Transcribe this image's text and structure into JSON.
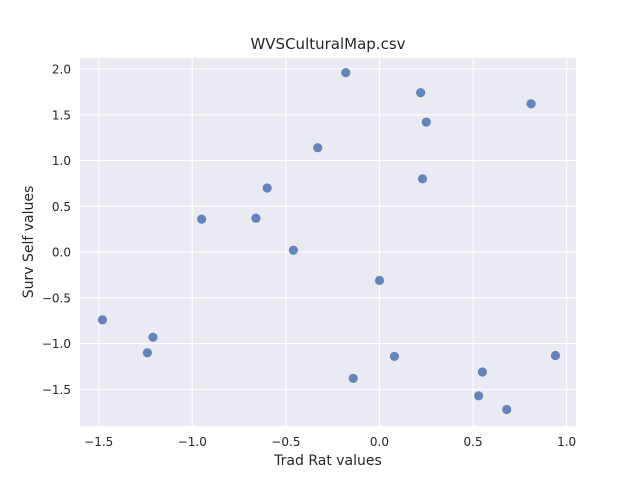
{
  "chart_data": {
    "type": "scatter",
    "title": "WVSCulturalMap.csv",
    "xlabel": "Trad Rat values",
    "ylabel": "Surv Self values",
    "xlim": [
      -1.6,
      1.05
    ],
    "ylim": [
      -1.9,
      2.12
    ],
    "xticks": [
      -1.5,
      -1.0,
      -0.5,
      0.0,
      0.5,
      1.0
    ],
    "xtick_labels": [
      "−1.5",
      "−1.0",
      "−0.5",
      "0.0",
      "0.5",
      "1.0"
    ],
    "yticks": [
      -1.5,
      -1.0,
      -0.5,
      0.0,
      0.5,
      1.0,
      1.5,
      2.0
    ],
    "ytick_labels": [
      "−1.5",
      "−1.0",
      "−0.5",
      "0.0",
      "0.5",
      "1.0",
      "1.5",
      "2.0"
    ],
    "grid": true,
    "point_color": "#4c72b0",
    "background_color": "#eaeaf2",
    "points": [
      {
        "x": -1.48,
        "y": -0.74
      },
      {
        "x": -1.24,
        "y": -1.1
      },
      {
        "x": -1.21,
        "y": -0.93
      },
      {
        "x": -0.95,
        "y": 0.36
      },
      {
        "x": -0.66,
        "y": 0.37
      },
      {
        "x": -0.6,
        "y": 0.7
      },
      {
        "x": -0.46,
        "y": 0.02
      },
      {
        "x": -0.33,
        "y": 1.14
      },
      {
        "x": -0.18,
        "y": 1.96
      },
      {
        "x": -0.14,
        "y": -1.38
      },
      {
        "x": 0.0,
        "y": -0.31
      },
      {
        "x": 0.08,
        "y": -1.14
      },
      {
        "x": 0.22,
        "y": 1.74
      },
      {
        "x": 0.23,
        "y": 0.8
      },
      {
        "x": 0.25,
        "y": 1.42
      },
      {
        "x": 0.53,
        "y": -1.57
      },
      {
        "x": 0.55,
        "y": -1.31
      },
      {
        "x": 0.68,
        "y": -1.72
      },
      {
        "x": 0.81,
        "y": 1.62
      },
      {
        "x": 0.94,
        "y": -1.13
      }
    ]
  }
}
